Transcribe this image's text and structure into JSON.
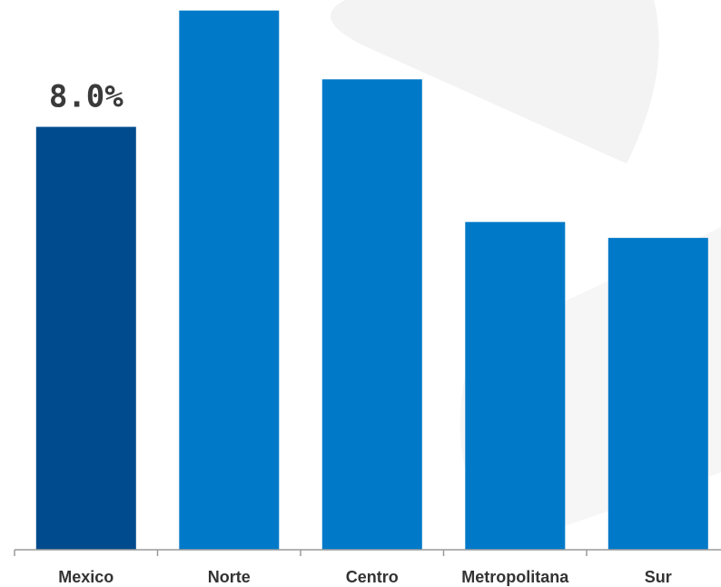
{
  "chart_data": {
    "type": "bar",
    "categories": [
      "Mexico",
      "Norte",
      "Centro",
      "Metropolitana",
      "Sur"
    ],
    "values": [
      8.0,
      10.2,
      8.9,
      6.2,
      5.9
    ],
    "value_unit": "%",
    "ylim": [
      0,
      10.4
    ],
    "grid": false,
    "legend": "none",
    "data_labels": [
      {
        "category": "Mexico",
        "text": "8.0%"
      }
    ],
    "title": "",
    "xlabel": "",
    "ylabel": ""
  },
  "colors": {
    "highlight_bar": "#004b8d",
    "bar": "#0079c8",
    "axis": "#9a9a9a",
    "watermark": "#f2f2f2"
  }
}
